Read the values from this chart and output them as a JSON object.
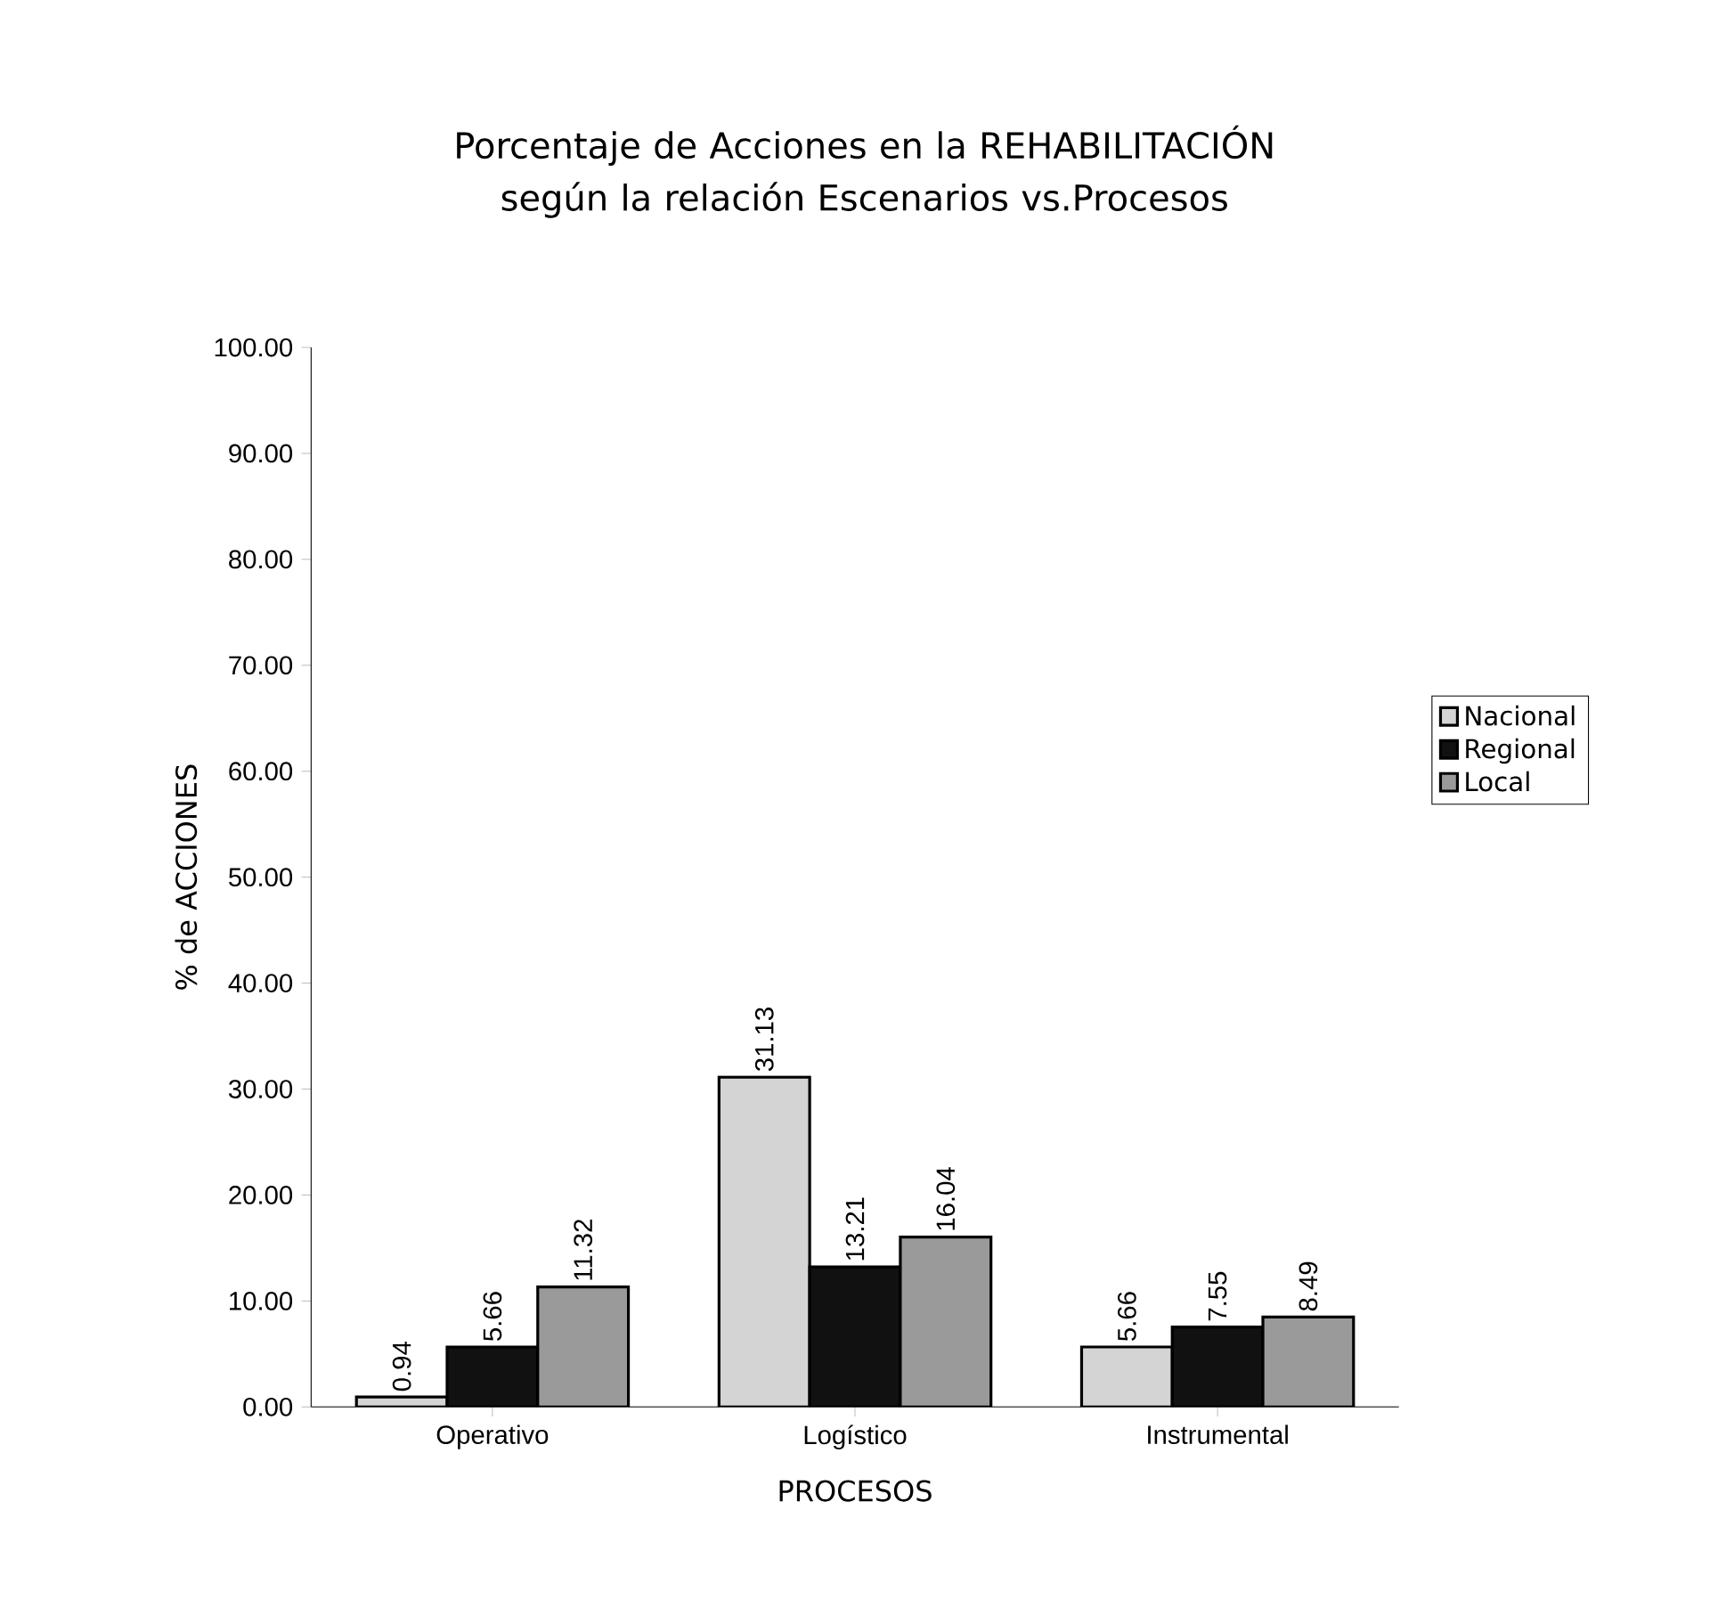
{
  "chart_data": {
    "type": "bar",
    "title": "Porcentaje de Acciones en la REHABILITACIÓN\nsegún la relación Escenarios vs.Procesos",
    "xlabel": "PROCESOS",
    "ylabel": "% de ACCIONES",
    "categories": [
      "Operativo",
      "Logístico",
      "Instrumental"
    ],
    "series": [
      {
        "name": "Nacional",
        "color": "#d4d4d4",
        "values": [
          0.94,
          31.13,
          5.66
        ],
        "value_labels": [
          "0.94",
          "31.13",
          "5.66"
        ]
      },
      {
        "name": "Regional",
        "color": "#111111",
        "values": [
          5.66,
          13.21,
          7.55
        ],
        "value_labels": [
          "5.66",
          "13.21",
          "7.55"
        ]
      },
      {
        "name": "Local",
        "color": "#9a9a9a",
        "values": [
          11.32,
          16.04,
          8.49
        ],
        "value_labels": [
          "11.32",
          "16.04",
          "8.49"
        ]
      }
    ],
    "ylim": [
      0,
      100
    ],
    "yticks": [
      {
        "value": 0,
        "label": "0.00"
      },
      {
        "value": 10,
        "label": "10.00"
      },
      {
        "value": 20,
        "label": "20.00"
      },
      {
        "value": 30,
        "label": "30.00"
      },
      {
        "value": 40,
        "label": "40.00"
      },
      {
        "value": 50,
        "label": "50.00"
      },
      {
        "value": 60,
        "label": "60.00"
      },
      {
        "value": 70,
        "label": "70.00"
      },
      {
        "value": 80,
        "label": "80.00"
      },
      {
        "value": 90,
        "label": "90.00"
      },
      {
        "value": 100,
        "label": "100.00"
      }
    ],
    "grid": false,
    "legend": "right"
  }
}
